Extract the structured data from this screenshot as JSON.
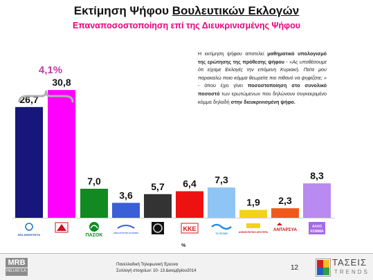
{
  "header": {
    "title_prefix": "Εκτίμηση Ψήφου",
    "title_underlined": "Βουλευτικών Εκλογών",
    "subtitle": "Επαναποσοστοποίηση επί της Διευκρινισμένης Ψήφου"
  },
  "explanation": {
    "p1_a": "Η εκτίμηση ψήφου αποτελεί ",
    "p1_b": "μαθηματικό υπολογισμό της ερώτησης της πρόθεσης ψήφου",
    "p1_c": " - ",
    "p1_d": "«Ας υποθέσουμε ότι είχαμε Εκλογές την επόμενη Κυριακή. Πείτε μου παρακαλώ ποιο κόμμα θεωρείτε πιο πιθανό να ψηφίζατε; »",
    "p1_e": " - όπου έχει γίνει ",
    "p1_f": "ποσοστοποίηση στο συνολικό ποσοστό",
    "p1_g": " των ερωτώμενων που δηλώνουν συγκεκριμένο κόμμα δηλαδή ",
    "p1_h": "στην διευκρινισμένη ψήφο."
  },
  "chart_data": {
    "type": "bar",
    "categories": [
      "ΝΕΑ ΔΗΜΟΚΡΑΤΙΑ",
      "ΣΥΡΙΖΑ",
      "ΠΑΣΟΚ",
      "ΑΝΕΞΑΡΤΗΤΟΙ ΕΛΛΗΝΕΣ",
      "ΧΡΥΣΗ ΑΥΓΗ",
      "ΚΚΕ",
      "ΤΟ ΠΟΤΑΜΙ",
      "ΔΗΜΟΚΡΑΤΙΚΗ ΑΡΙΣΤΕΡΑ",
      "ΑΝΤΑΡΣΥΑ",
      "ΑΛΛΟ ΚΟΜΜΑ"
    ],
    "values": [
      26.7,
      30.8,
      7.0,
      3.6,
      5.7,
      6.4,
      7.3,
      1.9,
      2.3,
      8.3
    ],
    "value_labels": [
      "26,7",
      "30,8",
      "7,0",
      "3,6",
      "5,7",
      "6,4",
      "7,3",
      "1,9",
      "2,3",
      "8,3"
    ],
    "colors": [
      "#17167a",
      "#ff00ff",
      "#118a21",
      "#3a5fd6",
      "#333333",
      "#ee1111",
      "#8fc5f5",
      "#f2d31a",
      "#ef5a1b",
      "#b98af0"
    ],
    "difference_label": "4,1%",
    "difference_color": "#c43ca5",
    "ylabel": "%",
    "ylim": [
      0,
      32
    ]
  },
  "logos": {
    "pasok": "ΠΑΣΟΚ",
    "kke": "ΚΚΕ",
    "antarsya": "ΑΝΤΑΡΣΥΑ",
    "allo": "ΑΛΛΟ ΚΟΜΜΑ",
    "nd": "ΝΕΑ ΔΗΜΟΚΡΑΤΙΑ",
    "anel": "ΑΝΕΞΑΡΤΗΤΟΙ ΕΛΛΗΝΕΣ",
    "potami": "ΤΟ ΠΟΤΑΜΙ",
    "dimar": "ΔΗΜΟΚΡΑΤΙΚΗ ΑΡΙΣΤΕΡΑ"
  },
  "footer": {
    "mrb_big": "MRB",
    "mrb_small": "HELLAS S.A.",
    "line1": "Πανελλαδική Τηλεφωνική Έρευνα",
    "line2": "Συλλογή στοιχείων: 10- 13 Δεκεμβρίου2014",
    "page": "12",
    "tasies": "ΤΑΣΕΙΣ",
    "trends": "TRENDS"
  }
}
